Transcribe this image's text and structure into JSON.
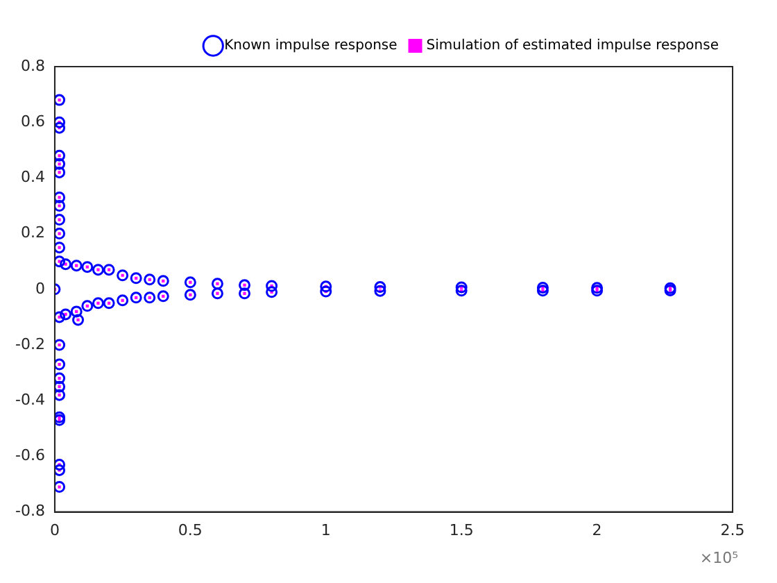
{
  "chart_data": {
    "type": "scatter",
    "legend": "top right",
    "grid": false,
    "x": [
      0,
      0.017,
      0.017,
      0.017,
      0.017,
      0.017,
      0.017,
      0.017,
      0.017,
      0.017,
      0.017,
      0.017,
      0.017,
      0.017,
      0.017,
      0.017,
      0.017,
      0.017,
      0.017,
      0.017,
      0.017,
      0.017,
      0.017,
      0.017,
      0.04,
      0.04,
      0.08,
      0.08,
      0.086,
      0.12,
      0.12,
      0.16,
      0.16,
      0.2,
      0.2,
      0.25,
      0.25,
      0.3,
      0.3,
      0.35,
      0.35,
      0.4,
      0.4,
      0.5,
      0.5,
      0.6,
      0.6,
      0.7,
      0.7,
      0.8,
      0.8,
      1,
      1,
      1.2,
      1.2,
      1.5,
      1.5,
      1.8,
      1.8,
      2,
      2,
      2.27,
      2.27
    ],
    "series": [
      {
        "name": "Known impulse response",
        "color": "#0000ff",
        "marker": "circle",
        "values": [
          0,
          0.68,
          0.6,
          0.58,
          0.48,
          0.45,
          0.42,
          0.33,
          0.3,
          0.25,
          0.2,
          0.15,
          0.1,
          -0.1,
          -0.2,
          -0.27,
          -0.32,
          -0.35,
          -0.38,
          -0.46,
          -0.47,
          -0.63,
          -0.65,
          -0.71,
          0.09,
          -0.09,
          0.085,
          -0.08,
          -0.11,
          0.08,
          -0.06,
          0.07,
          -0.05,
          0.07,
          -0.05,
          0.05,
          -0.04,
          0.04,
          -0.03,
          0.035,
          -0.03,
          0.03,
          -0.025,
          0.025,
          -0.02,
          0.02,
          -0.015,
          0.015,
          -0.015,
          0.012,
          -0.01,
          0.01,
          -0.008,
          0.008,
          -0.006,
          0.007,
          -0.005,
          0.006,
          -0.005,
          0.005,
          -0.005,
          0.004,
          -0.004
        ]
      },
      {
        "name": "Simulation of estimated impulse response",
        "color": "#ff00ff",
        "marker": "square",
        "values": [
          0,
          0.68,
          0.6,
          0.58,
          0.48,
          0.45,
          0.42,
          0.33,
          0.3,
          0.25,
          0.2,
          0.15,
          0.1,
          -0.1,
          -0.2,
          -0.27,
          -0.32,
          -0.35,
          -0.38,
          -0.46,
          -0.47,
          -0.63,
          -0.65,
          -0.71,
          0.09,
          -0.09,
          0.085,
          -0.08,
          -0.11,
          0.08,
          -0.06,
          0.07,
          -0.05,
          0.07,
          -0.05,
          0.05,
          -0.04,
          0.04,
          -0.03,
          0.035,
          -0.03,
          0.03,
          -0.025,
          0.025,
          -0.02,
          0.02,
          -0.015,
          0.015,
          -0.015,
          0.012,
          -0.01,
          0.01,
          -0.008,
          0.008,
          -0.006,
          0.007,
          -0.005,
          0.006,
          -0.005,
          0.005,
          -0.005,
          0.004,
          -0.004
        ]
      }
    ],
    "xlim": [
      0,
      2.5
    ],
    "xticks": [
      0,
      0.5,
      1,
      1.5,
      2,
      2.5
    ],
    "ylim": [
      -0.8,
      0.8
    ],
    "yticks": [
      -0.8,
      -0.6,
      -0.4,
      -0.2,
      0,
      0.2,
      0.4,
      0.6,
      0.8
    ],
    "annotations": [
      "×10⁵"
    ]
  }
}
